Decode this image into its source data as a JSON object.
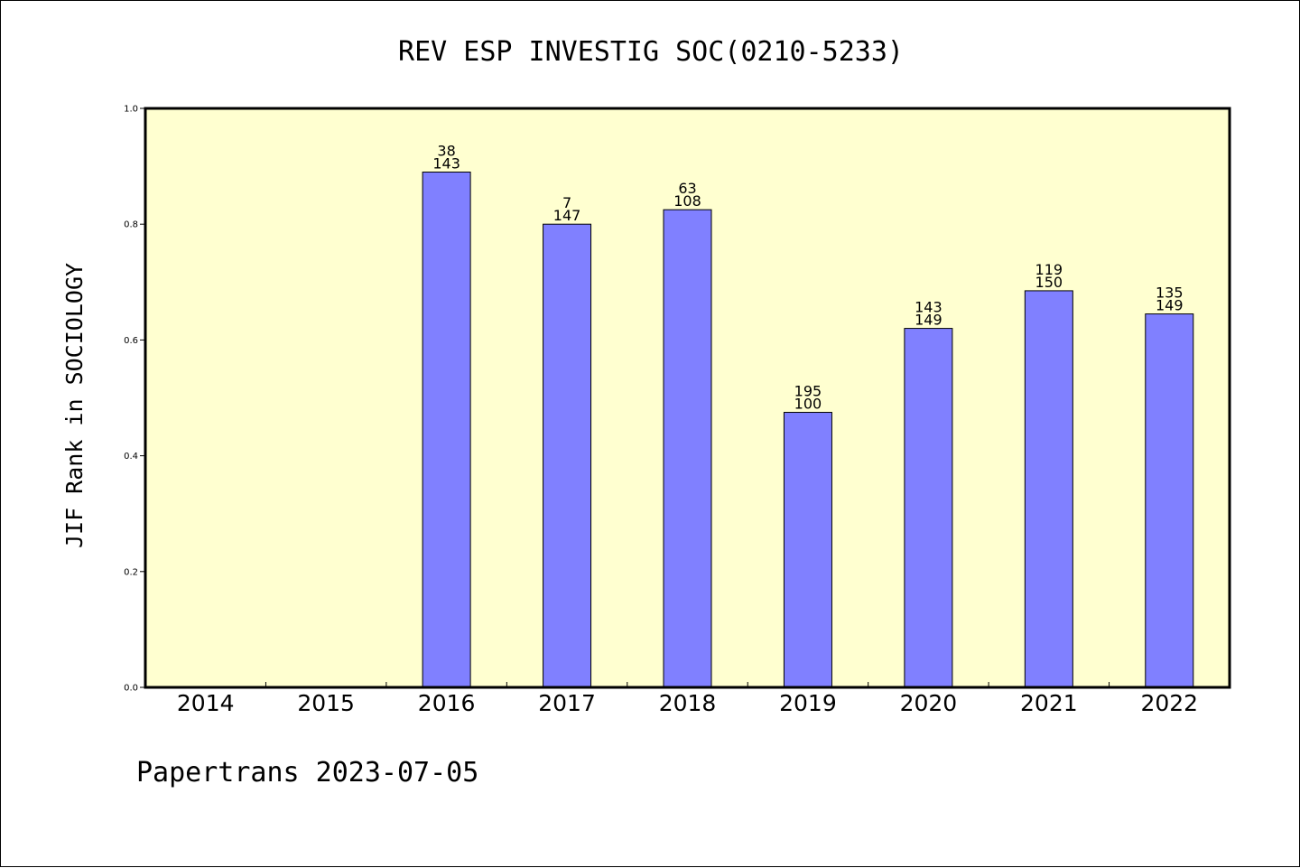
{
  "chart_data": {
    "type": "bar",
    "title": "REV ESP INVESTIG SOC(0210-5233)",
    "xlabel": "",
    "ylabel": "JIF Rank in SOCIOLOGY",
    "ylim": [
      0,
      1.0
    ],
    "yticks": [
      "0.0",
      "0.2",
      "0.4",
      "0.6",
      "0.8",
      "1.0"
    ],
    "categories": [
      "2014",
      "2015",
      "2016",
      "2017",
      "2018",
      "2019",
      "2020",
      "2021",
      "2022"
    ],
    "values": [
      null,
      null,
      0.89,
      0.8,
      0.825,
      0.475,
      0.62,
      0.685,
      0.645
    ],
    "rank_labels": [
      "",
      "",
      "38",
      "7",
      "63",
      "195",
      "143",
      "119",
      "135"
    ],
    "total_labels": [
      "",
      "",
      "143",
      "147",
      "108",
      "100",
      "149",
      "150",
      "149"
    ],
    "grid": false,
    "legend": "none",
    "colors": {
      "plot_background": "#FFFFD0",
      "bar_fill": "#8080FF",
      "bar_stroke": "#000000"
    }
  },
  "footer": "Papertrans 2023-07-05"
}
